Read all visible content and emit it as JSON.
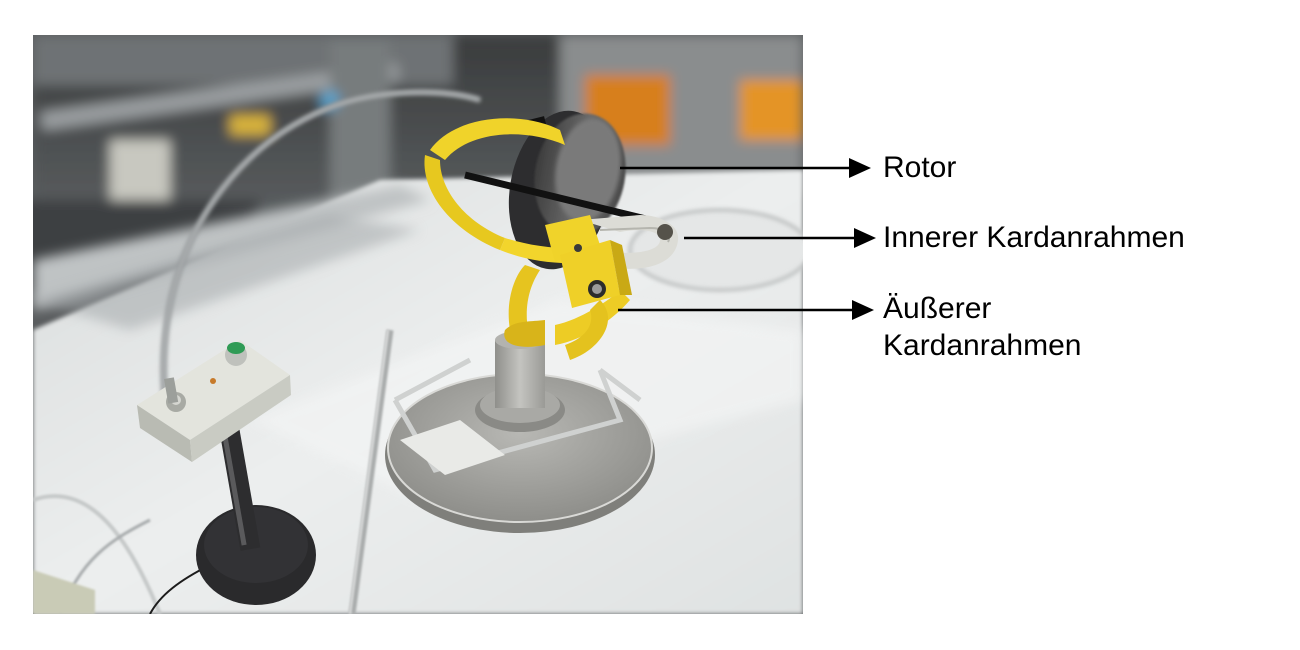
{
  "photo": {
    "subject": "gyroscope",
    "colors": {
      "frame": "#f0d32a",
      "rotor": "#5e5e5e",
      "table": "#e8eaea",
      "background_dark": "#4a4d4f"
    }
  },
  "annotations": [
    {
      "id": "rotor",
      "lines": [
        "Rotor"
      ]
    },
    {
      "id": "inner",
      "lines": [
        "Innerer Kardanrahmen"
      ]
    },
    {
      "id": "outer",
      "lines": [
        "Äußerer",
        "Kardanrahmen"
      ]
    }
  ],
  "styles": {
    "arrow_color": "#000000",
    "text_color": "#000000"
  }
}
